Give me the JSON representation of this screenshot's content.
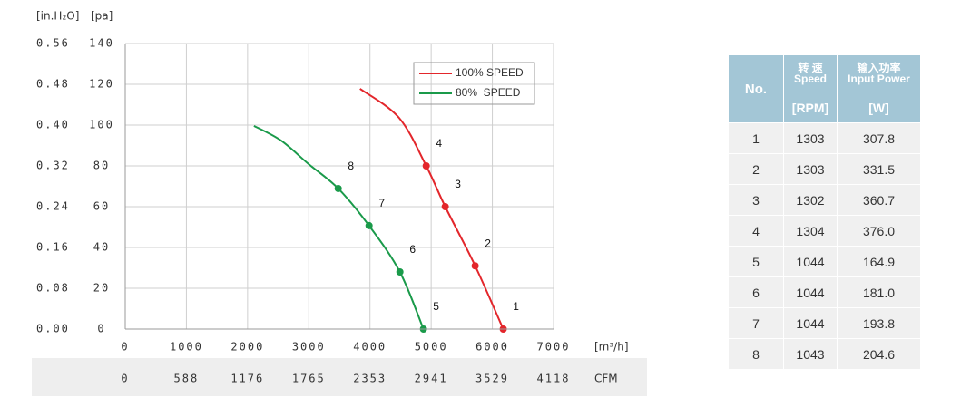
{
  "chart_data": {
    "type": "line",
    "y_label": "[pa]",
    "y2_label": "[in.H₂O]",
    "x_label": "[m³/h]",
    "x2_label": "CFM",
    "xlim": [
      0,
      7000
    ],
    "xticks": [
      0,
      1000,
      2000,
      3000,
      4000,
      5000,
      6000,
      7000
    ],
    "x2lim": [
      0,
      4118
    ],
    "x2ticks": [
      0,
      588,
      1176,
      1765,
      2353,
      2941,
      3529,
      4118
    ],
    "ylim": [
      0,
      140
    ],
    "yticks": [
      0,
      20,
      40,
      60,
      80,
      100,
      120,
      140
    ],
    "y2lim": [
      0,
      0.56
    ],
    "y2ticks": [
      {
        "value": 0,
        "label": "0.00"
      },
      {
        "value": 0.08,
        "label": "0.08"
      },
      {
        "value": 0.16,
        "label": "0.16"
      },
      {
        "value": 0.24,
        "label": "0.24"
      },
      {
        "value": 0.32,
        "label": "0.32"
      },
      {
        "value": 0.4,
        "label": "0.40"
      },
      {
        "value": 0.48,
        "label": "0.48"
      },
      {
        "value": 0.56,
        "label": "0.56"
      }
    ],
    "grid": true,
    "legend": "upper right",
    "series": [
      {
        "name": "100% SPEED",
        "color": "#e3262b",
        "x": [
          3837,
          4474,
          4919,
          5230,
          5719,
          6178
        ],
        "values": [
          117.8,
          103.6,
          80,
          60,
          31,
          0
        ],
        "point_labels": [
          null,
          null,
          "4",
          "3",
          "2",
          "1"
        ]
      },
      {
        "name": "80%  SPEED",
        "color": "#1a9a4a",
        "x": [
          2104,
          2548,
          2993,
          3481,
          3985,
          4489,
          4874
        ],
        "values": [
          99.6,
          92.4,
          81,
          68.9,
          50.7,
          28,
          0
        ],
        "point_labels": [
          null,
          null,
          null,
          "8",
          "7",
          "6",
          "5"
        ]
      }
    ]
  },
  "table": {
    "header": {
      "no": "No.",
      "speed_cn": "转 速",
      "speed_en": "Speed",
      "power_cn": "输入功率",
      "power_en": "Input Power",
      "unit_rpm": "[RPM]",
      "unit_w": "[W]"
    },
    "rows": [
      [
        "1",
        "1303",
        "307.8"
      ],
      [
        "2",
        "1303",
        "331.5"
      ],
      [
        "3",
        "1302",
        "360.7"
      ],
      [
        "4",
        "1304",
        "376.0"
      ],
      [
        "5",
        "1044",
        "164.9"
      ],
      [
        "6",
        "1044",
        "181.0"
      ],
      [
        "7",
        "1044",
        "193.8"
      ],
      [
        "8",
        "1043",
        "204.6"
      ]
    ]
  }
}
